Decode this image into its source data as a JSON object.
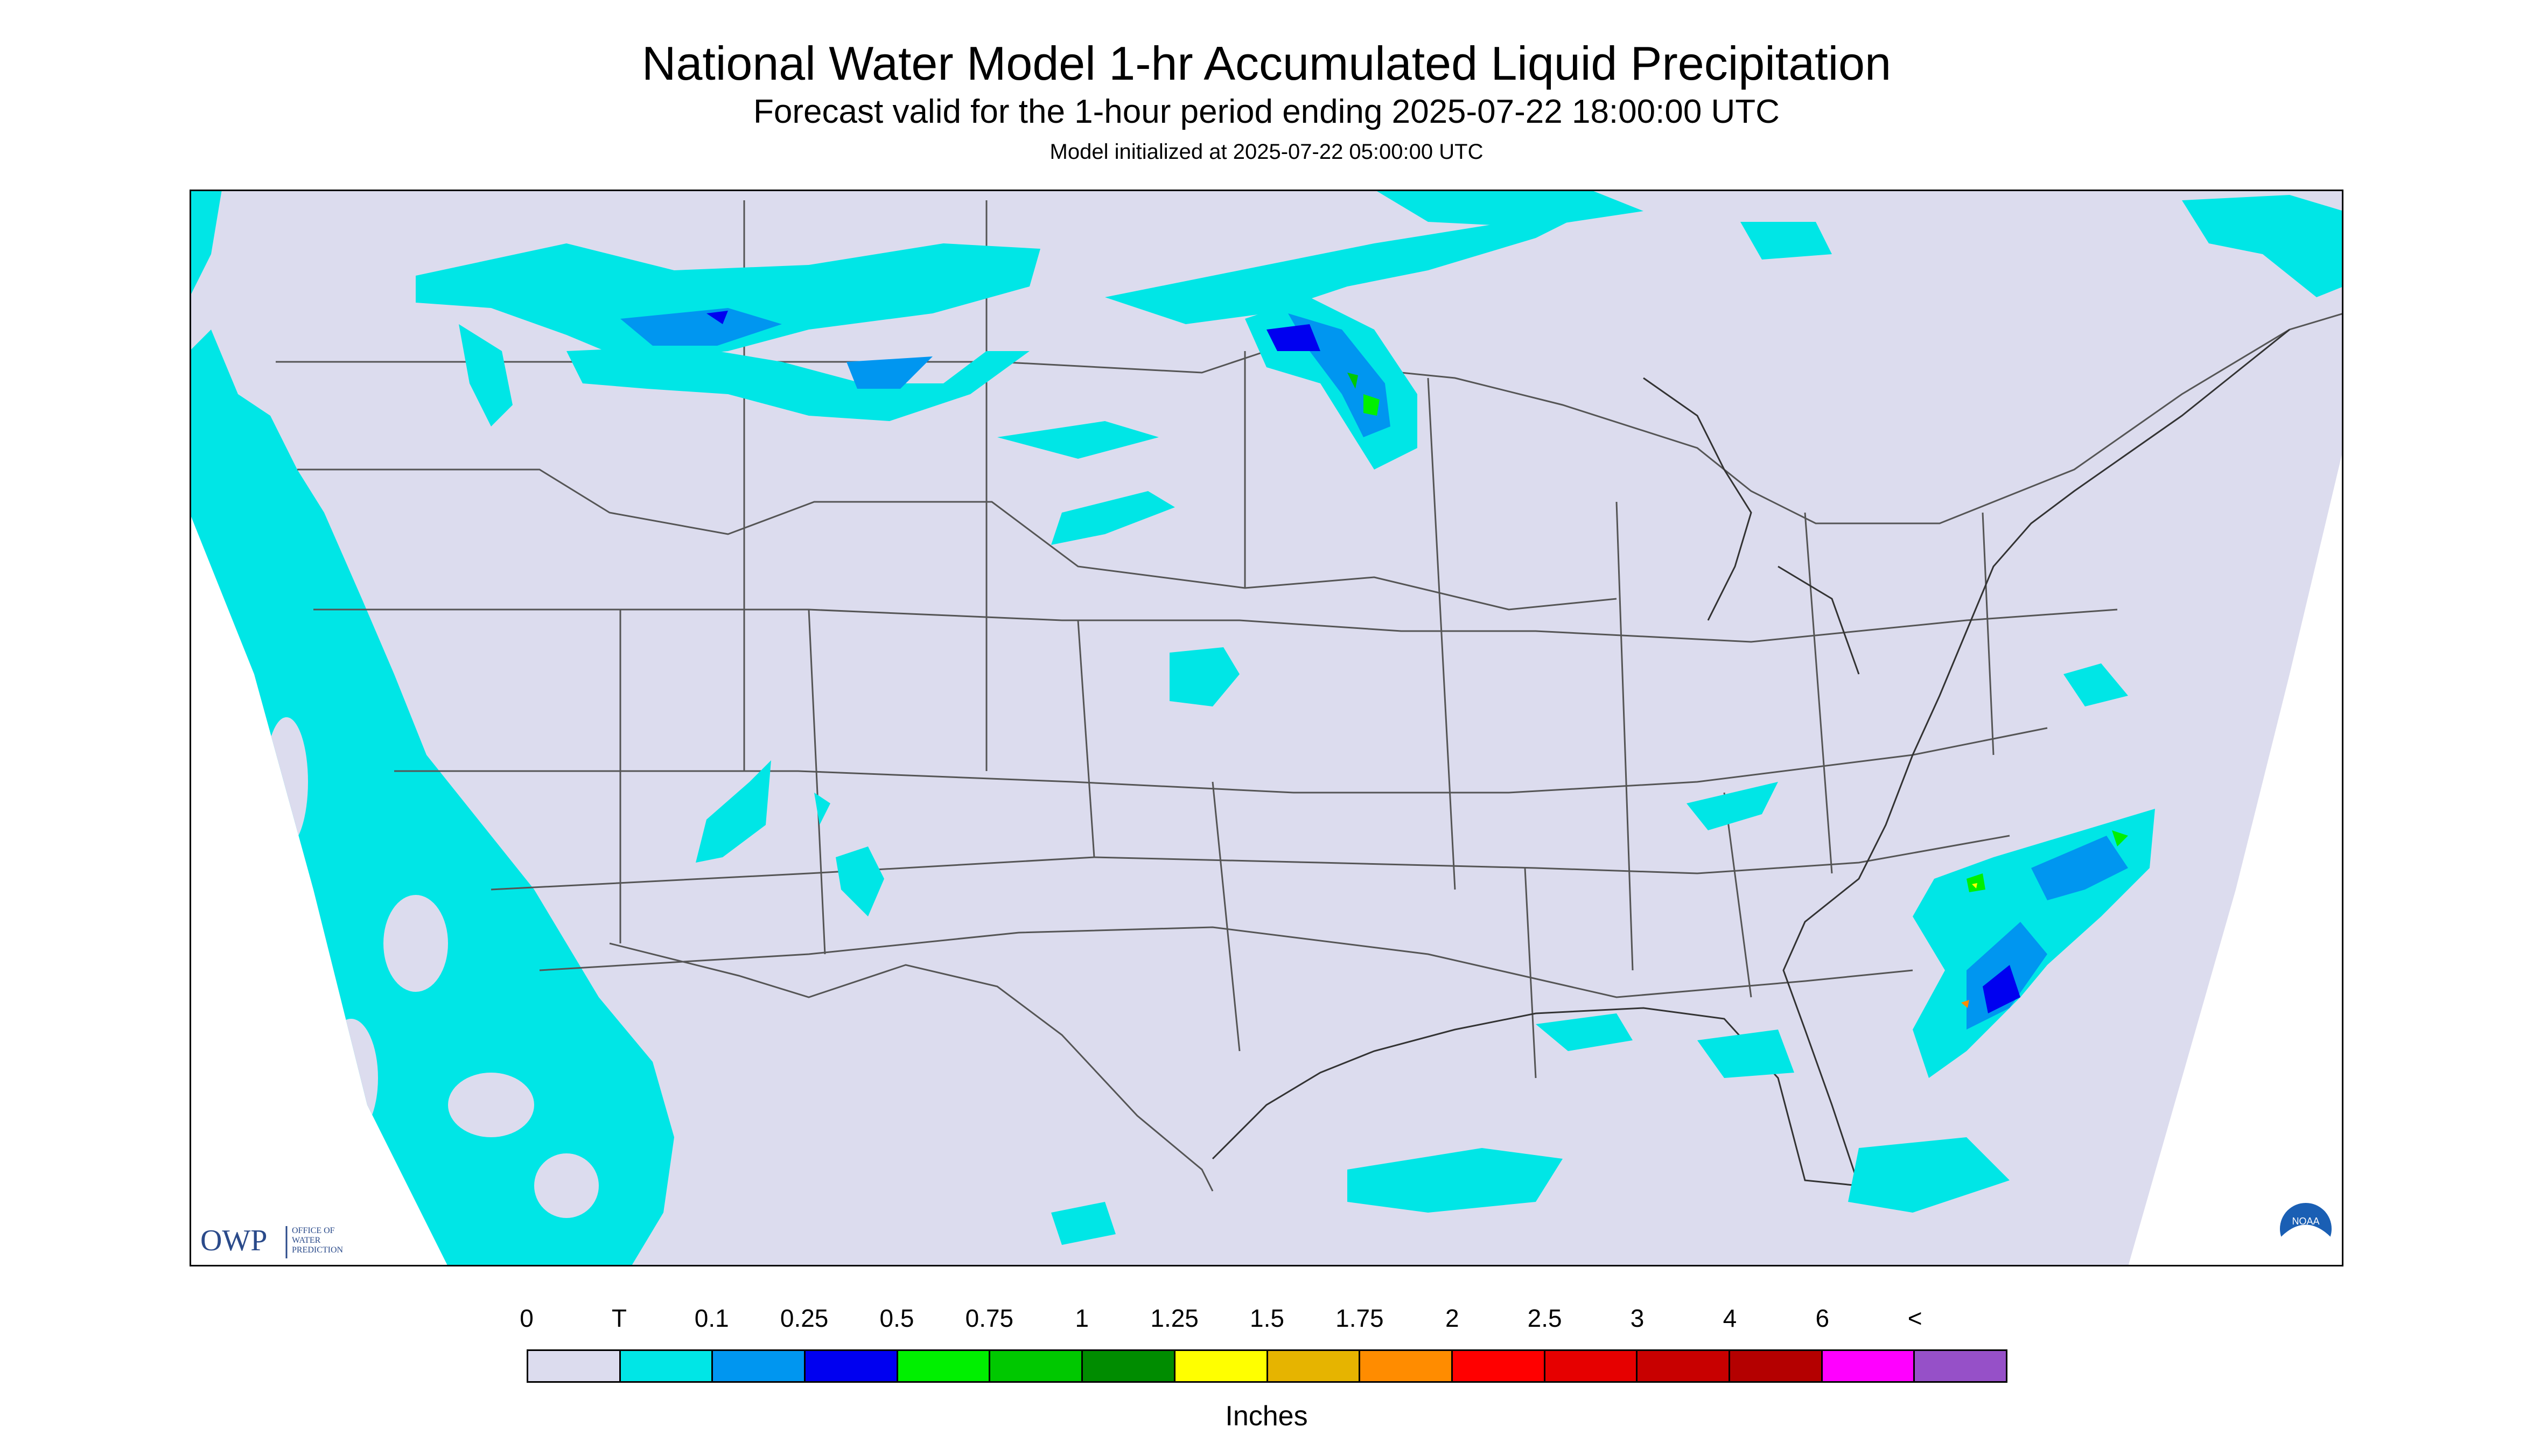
{
  "title": "National Water Model 1-hr Accumulated Liquid Precipitation",
  "subtitle": "Forecast valid for the 1-hour period ending 2025-07-22 18:00:00 UTC",
  "init": "Model initialized at 2025-07-22 05:00:00 UTC",
  "owp_logo": {
    "abbr": "OWP",
    "text1": "OFFICE OF",
    "text2": "WATER",
    "text3": "PREDICTION"
  },
  "noaa_logo": {
    "text": "NOAA"
  },
  "legend": {
    "units": "Inches",
    "ticks": [
      "0",
      "T",
      "0.1",
      "0.25",
      "0.5",
      "0.75",
      "1",
      "1.25",
      "1.5",
      "1.75",
      "2",
      "2.5",
      "3",
      "4",
      "6",
      "<"
    ],
    "colors": [
      "#dcdcee",
      "#00e6e6",
      "#0096f0",
      "#0000f0",
      "#00f000",
      "#00c800",
      "#008c00",
      "#ffff00",
      "#e6b400",
      "#ff8c00",
      "#ff0000",
      "#e60000",
      "#c80000",
      "#b40000",
      "#ff00ff",
      "#9650c8"
    ]
  },
  "colors": {
    "land": "#dcdcee",
    "trace": "#00e6e6",
    "light": "#0096f0",
    "medium": "#0000f0",
    "heavy_green": "#00f000",
    "heavy_yellow": "#ffff00",
    "heavy_orange": "#ff8c00"
  }
}
